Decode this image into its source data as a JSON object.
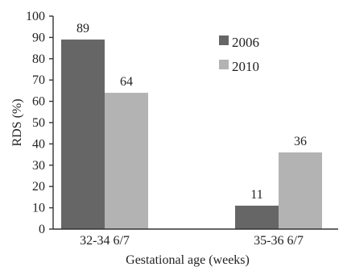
{
  "chart_data": {
    "type": "bar",
    "title": "",
    "xlabel": "Gestational age (weeks)",
    "ylabel": "RDS (%)",
    "ylim": [
      0,
      100
    ],
    "yticks": [
      0,
      10,
      20,
      30,
      40,
      50,
      60,
      70,
      80,
      90,
      100
    ],
    "categories": [
      "32-34 6/7",
      "35-36 6/7"
    ],
    "series": [
      {
        "name": "2006",
        "values": [
          89,
          11
        ],
        "color": "#666666"
      },
      {
        "name": "2010",
        "values": [
          64,
          36
        ],
        "color": "#b3b3b3"
      }
    ],
    "data_labels": [
      [
        "89",
        "11"
      ],
      [
        "64",
        "36"
      ]
    ],
    "legend": "top-right",
    "grid": false
  }
}
